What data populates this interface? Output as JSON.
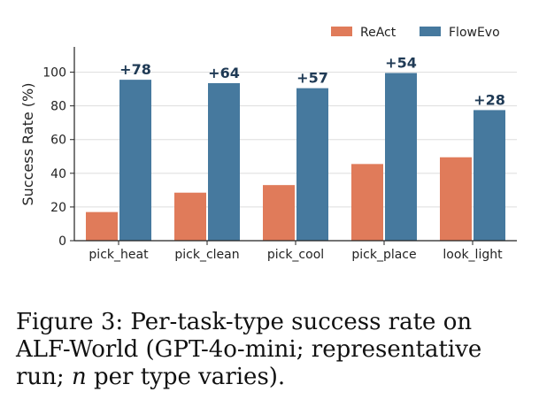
{
  "chart_data": {
    "type": "bar",
    "categories": [
      "pick_heat",
      "pick_clean",
      "pick_cool",
      "pick_place",
      "look_light"
    ],
    "series": [
      {
        "name": "ReAct",
        "values": [
          17,
          28.5,
          33,
          45.5,
          49.5
        ],
        "color": "#e07b5a"
      },
      {
        "name": "FlowEvo",
        "values": [
          95.5,
          93.5,
          90.5,
          99.5,
          77.5
        ],
        "color": "#46799e"
      }
    ],
    "annotations": [
      "+78",
      "+64",
      "+57",
      "+54",
      "+28"
    ],
    "annotation_color": "#1f3a55",
    "ylabel": "Success Rate (%)",
    "ylim": [
      0,
      115
    ],
    "yticks": [
      0,
      20,
      40,
      60,
      80,
      100
    ],
    "grid": "horizontal",
    "legend": "top-right"
  },
  "caption": {
    "prefix": "Figure 3: Per-task-type success rate on ALF-World (GPT-4o-mini; representative run; ",
    "italic": "n",
    "suffix": " per type varies)."
  }
}
